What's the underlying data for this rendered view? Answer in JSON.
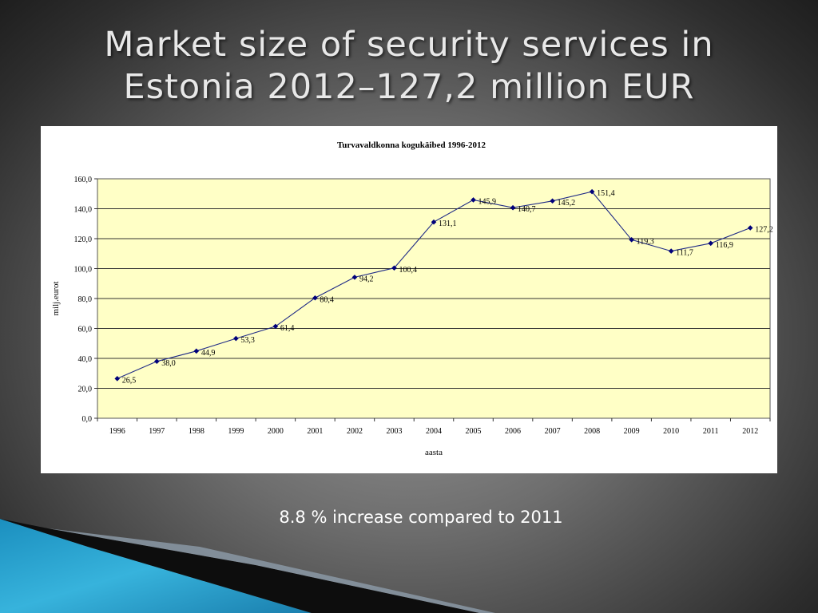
{
  "slide": {
    "title": "Market size of security services in\nEstonia 2012–127,2 million EUR",
    "caption": "8.8 % increase compared to 2011"
  },
  "colors": {
    "plot_background": "#ffffc6",
    "line": "#1f2a86",
    "marker": "#00007a",
    "accent_blue": "#2aa7cf"
  },
  "chart_data": {
    "type": "line",
    "title": "Turvavaldkonna kogukäibed 1996-2012",
    "xlabel": "aasta",
    "ylabel": "milj.eurot",
    "categories": [
      "1996",
      "1997",
      "1998",
      "1999",
      "2000",
      "2001",
      "2002",
      "2003",
      "2004",
      "2005",
      "2006",
      "2007",
      "2008",
      "2009",
      "2010",
      "2011",
      "2012"
    ],
    "values": [
      26.5,
      38.0,
      44.9,
      53.3,
      61.4,
      80.4,
      94.2,
      100.4,
      131.1,
      145.9,
      140.7,
      145.2,
      151.4,
      119.3,
      111.7,
      116.9,
      127.2
    ],
    "data_labels": [
      "26,5",
      "38,0",
      "44,9",
      "53,3",
      "61,4",
      "80,4",
      "94,2",
      "100,4",
      "131,1",
      "145,9",
      "140,7",
      "145,2",
      "151,4",
      "119,3",
      "111,7",
      "116,9",
      "127,2"
    ],
    "ylim": [
      0,
      160
    ],
    "yticks": [
      "0,0",
      "20,0",
      "40,0",
      "60,0",
      "80,0",
      "100,0",
      "120,0",
      "140,0",
      "160,0"
    ],
    "grid": true,
    "legend": "none"
  }
}
